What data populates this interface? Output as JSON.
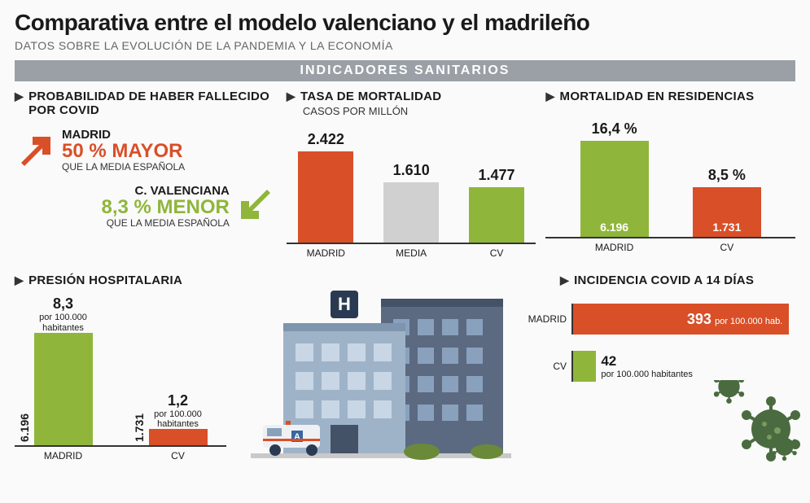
{
  "colors": {
    "madrid": "#d94f28",
    "cv": "#8fb63a",
    "media": "#d0d0d0",
    "band": "#9a9fa5",
    "text": "#1a1a1a"
  },
  "title": "Comparativa entre el modelo valenciano y el madrileño",
  "subtitle": "DATOS SOBRE LA EVOLUCIÓN DE LA PANDEMIA Y LA ECONOMÍA",
  "section_title": "INDICADORES SANITARIOS",
  "headings": {
    "prob": "PROBABILIDAD DE HABER FALLECIDO POR COVID",
    "mortalidad": "TASA DE MORTALIDAD",
    "mortalidad_sub": "CASOS POR MILLÓN",
    "residencias": "MORTALIDAD EN RESIDENCIAS",
    "presion": "PRESIÓN HOSPITALARIA",
    "incidencia": "INCIDENCIA COVID A 14 DÍAS"
  },
  "prob": {
    "madrid": {
      "label": "MADRID",
      "value": "50 % MAYOR",
      "sub": "QUE LA MEDIA ESPAÑOLA"
    },
    "cv": {
      "label": "C. VALENCIANA",
      "value": "8,3 % MENOR",
      "sub": "QUE LA MEDIA ESPAÑOLA"
    }
  },
  "mortalidad": {
    "ymax": 2600,
    "bars": [
      {
        "label": "MADRID",
        "value": "2.422",
        "num": 2422,
        "color": "#d94f28"
      },
      {
        "label": "MEDIA",
        "value": "1.610",
        "num": 1610,
        "color": "#d0d0d0"
      },
      {
        "label": "CV",
        "value": "1.477",
        "num": 1477,
        "color": "#8fb63a"
      }
    ]
  },
  "residencias": {
    "ymax": 18,
    "bars": [
      {
        "label": "MADRID",
        "value": "16,4 %",
        "num": 16.4,
        "inner": "6.196",
        "color": "#8fb63a"
      },
      {
        "label": "CV",
        "value": "8,5 %",
        "num": 8.5,
        "inner": "1.731",
        "color": "#d94f28"
      }
    ]
  },
  "presion": {
    "ymax": 9,
    "bars": [
      {
        "label": "MADRID",
        "value": "8,3",
        "sub": "por 100.000 habitantes",
        "num": 8.3,
        "side": "6.196",
        "color": "#8fb63a"
      },
      {
        "label": "CV",
        "value": "1,2",
        "sub": "por 100.000 habitantes",
        "num": 1.2,
        "side": "1.731",
        "color": "#d94f28"
      }
    ]
  },
  "incidencia": {
    "xmax": 400,
    "bars": [
      {
        "label": "MADRID",
        "value": "393",
        "sub": "por 100.000 hab.",
        "num": 393,
        "color": "#d94f28",
        "text_in": true
      },
      {
        "label": "CV",
        "value": "42",
        "sub": "por 100.000 habitantes",
        "num": 42,
        "color": "#8fb63a",
        "text_in": false
      }
    ]
  }
}
